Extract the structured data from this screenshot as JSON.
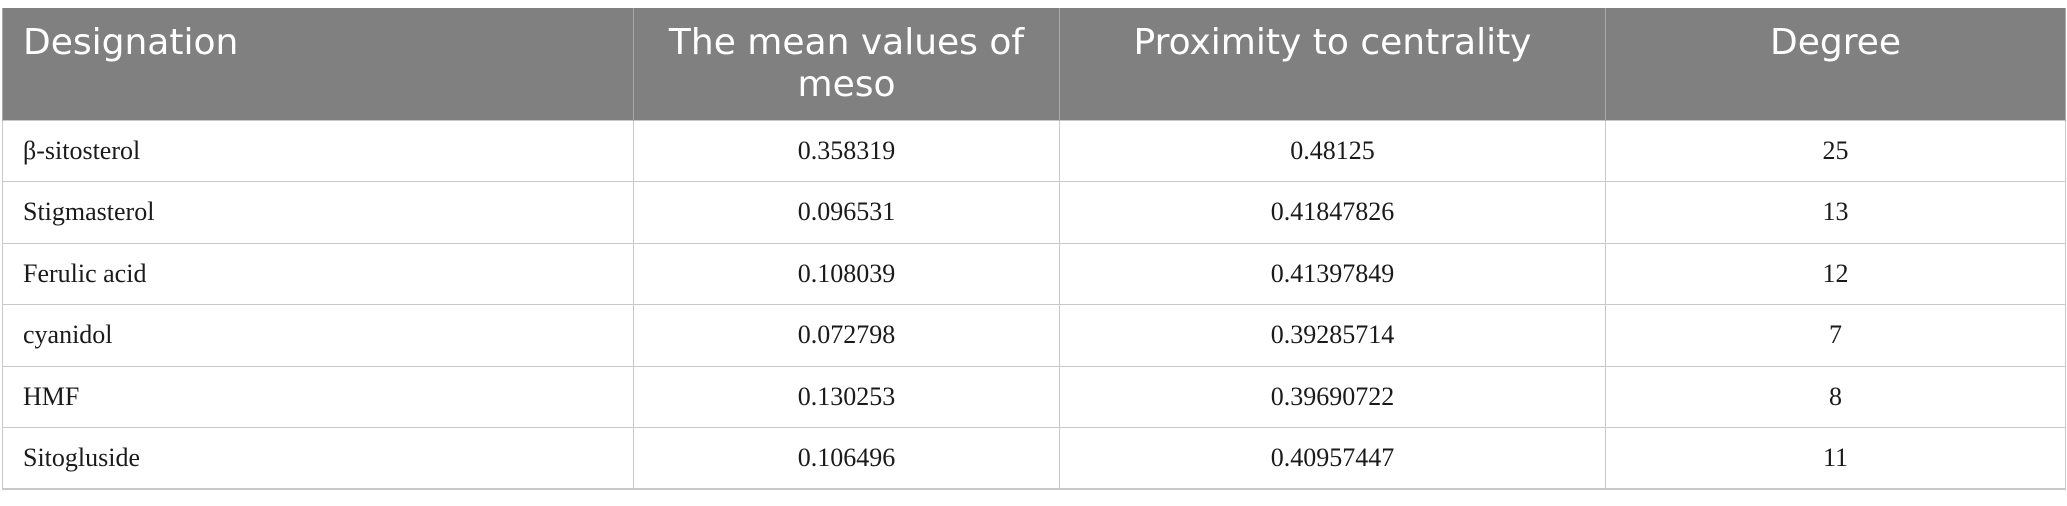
{
  "table": {
    "headers": [
      "Designation",
      "The mean values of meso",
      "Proximity to centrality",
      "Degree"
    ],
    "rows": [
      [
        "β-sitosterol",
        "0.358319",
        "0.48125",
        "25"
      ],
      [
        "Stigmasterol",
        "0.096531",
        "0.41847826",
        "13"
      ],
      [
        "Ferulic acid",
        "0.108039",
        "0.41397849",
        "12"
      ],
      [
        "cyanidol",
        "0.072798",
        "0.39285714",
        "7"
      ],
      [
        "HMF",
        "0.130253",
        "0.39690722",
        "8"
      ],
      [
        "Sitogluside",
        "0.106496",
        "0.40957447",
        "11"
      ]
    ]
  }
}
